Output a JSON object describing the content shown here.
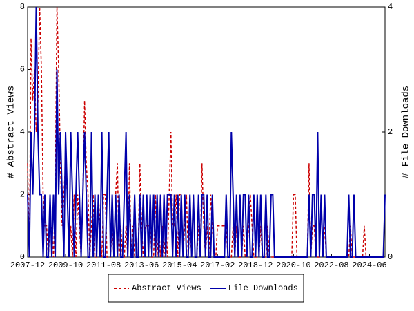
{
  "chart_data": {
    "type": "line",
    "x": [
      "2007-12",
      "2008-01",
      "2008-02",
      "2008-03",
      "2008-04",
      "2008-05",
      "2008-06",
      "2008-07",
      "2008-08",
      "2008-09",
      "2008-10",
      "2008-11",
      "2008-12",
      "2009-01",
      "2009-02",
      "2009-03",
      "2009-04",
      "2009-05",
      "2009-06",
      "2009-07",
      "2009-08",
      "2009-09",
      "2009-10",
      "2009-11",
      "2009-12",
      "2010-01",
      "2010-02",
      "2010-03",
      "2010-04",
      "2010-05",
      "2010-06",
      "2010-07",
      "2010-08",
      "2010-09",
      "2010-10",
      "2010-11",
      "2010-12",
      "2011-01",
      "2011-02",
      "2011-03",
      "2011-04",
      "2011-05",
      "2011-06",
      "2011-07",
      "2011-08",
      "2011-09",
      "2011-10",
      "2011-11",
      "2011-12",
      "2012-01",
      "2012-02",
      "2012-03",
      "2012-04",
      "2012-05",
      "2012-06",
      "2012-07",
      "2012-08",
      "2012-09",
      "2012-10",
      "2012-11",
      "2012-12",
      "2013-01",
      "2013-02",
      "2013-03",
      "2013-04",
      "2013-05",
      "2013-06",
      "2013-07",
      "2013-08",
      "2013-09",
      "2013-10",
      "2013-11",
      "2013-12",
      "2014-01",
      "2014-02",
      "2014-03",
      "2014-04",
      "2014-05",
      "2014-06",
      "2014-07",
      "2014-08",
      "2014-09",
      "2014-10",
      "2014-11",
      "2014-12",
      "2015-01",
      "2015-02",
      "2015-03",
      "2015-04",
      "2015-05",
      "2015-06",
      "2015-07",
      "2015-08",
      "2015-09",
      "2015-10",
      "2015-11",
      "2015-12",
      "2016-01",
      "2016-02",
      "2016-03",
      "2016-04",
      "2016-05",
      "2016-06",
      "2016-07",
      "2016-08",
      "2016-09",
      "2016-10",
      "2016-11",
      "2016-12",
      "2017-01",
      "2017-02",
      "2017-03",
      "2017-04",
      "2017-05",
      "2017-06",
      "2017-07",
      "2017-08",
      "2017-09",
      "2017-10",
      "2017-11",
      "2017-12",
      "2018-01",
      "2018-02",
      "2018-03",
      "2018-04",
      "2018-05",
      "2018-06",
      "2018-07",
      "2018-08",
      "2018-09",
      "2018-10",
      "2018-11",
      "2018-12",
      "2019-01",
      "2019-02",
      "2019-03",
      "2019-04",
      "2019-05",
      "2019-06",
      "2019-07",
      "2019-08",
      "2019-09",
      "2019-10",
      "2019-11",
      "2019-12",
      "2020-01",
      "2020-02",
      "2020-03",
      "2020-04",
      "2020-05",
      "2020-06",
      "2020-07",
      "2020-08",
      "2020-09",
      "2020-10",
      "2020-11",
      "2020-12",
      "2021-01",
      "2021-02",
      "2021-03",
      "2021-04",
      "2021-05",
      "2021-06",
      "2021-07",
      "2021-08",
      "2021-09",
      "2021-10",
      "2021-11",
      "2021-12",
      "2022-01",
      "2022-02",
      "2022-03",
      "2022-04",
      "2022-05",
      "2022-06",
      "2022-07",
      "2022-08",
      "2022-09",
      "2022-10",
      "2022-11",
      "2022-12",
      "2023-01",
      "2023-02",
      "2023-03",
      "2023-04",
      "2023-05",
      "2023-06",
      "2023-07",
      "2023-08",
      "2023-09",
      "2023-10",
      "2023-11",
      "2023-12",
      "2024-01",
      "2024-02",
      "2024-03",
      "2024-04",
      "2024-05",
      "2024-06",
      "2024-07",
      "2024-08",
      "2024-09",
      "2024-10",
      "2024-11",
      "2024-12",
      "2025-01",
      "2025-02",
      "2025-03"
    ],
    "xticks": [
      "2007-12",
      "2009-10",
      "2011-08",
      "2013-06",
      "2015-04",
      "2017-02",
      "2018-12",
      "2020-10",
      "2022-08",
      "2024-06"
    ],
    "ylabel": "# Abstract Views",
    "y2label": "# File Downloads",
    "ylim": [
      0,
      8
    ],
    "yticks": [
      0,
      2,
      4,
      6,
      8
    ],
    "y2lim": [
      0,
      4
    ],
    "y2ticks": [
      0,
      2,
      4
    ],
    "series": [
      {
        "name": "Abstract Views",
        "color": "#cc0000",
        "dashed": true,
        "values": [
          3,
          0,
          7,
          5,
          6,
          4,
          5,
          8,
          6,
          2,
          1,
          1,
          0,
          1,
          1,
          0,
          2,
          8,
          6,
          3,
          1,
          2,
          3,
          2,
          0,
          1,
          0,
          2,
          0,
          2,
          1,
          0,
          2,
          5,
          3,
          2,
          0,
          1,
          2,
          0,
          0,
          2,
          1,
          0,
          2,
          2,
          0,
          0,
          0,
          1,
          0,
          2,
          3,
          0,
          1,
          0,
          0,
          1,
          0,
          3,
          0,
          1,
          0,
          0,
          0,
          3,
          1,
          0,
          1,
          1,
          1,
          1,
          0,
          0,
          2,
          0,
          1,
          0,
          1,
          0,
          1,
          0,
          2,
          4,
          1,
          1,
          2,
          0,
          2,
          2,
          0,
          1,
          2,
          0,
          1,
          0,
          2,
          0,
          0,
          1,
          0,
          3,
          1,
          0,
          1,
          0,
          2,
          1,
          0,
          0,
          1,
          1,
          1,
          1,
          1,
          1,
          0,
          0,
          0,
          1,
          0,
          1,
          0,
          0,
          0,
          1,
          0,
          0,
          1,
          2,
          1,
          0,
          0,
          0,
          0,
          1,
          0,
          0,
          0,
          1,
          0,
          0,
          0,
          0,
          0,
          0,
          0,
          0,
          0,
          0,
          0,
          0,
          0,
          0,
          2,
          2,
          0,
          0,
          0,
          0,
          0,
          0,
          0,
          3,
          0,
          1,
          1,
          0,
          0,
          0,
          2,
          0,
          1,
          0,
          0,
          0,
          0,
          0,
          0,
          0,
          0,
          0,
          0,
          0,
          0,
          0,
          0,
          1,
          0,
          0,
          0,
          0,
          0,
          0,
          0,
          1,
          0,
          0,
          0,
          0,
          0,
          0,
          0,
          0,
          0,
          0,
          0,
          0
        ]
      },
      {
        "name": "File Downloads",
        "color": "#0000aa",
        "dashed": false,
        "axis": "y2",
        "values": [
          1,
          0,
          2,
          1,
          2,
          4,
          2,
          1,
          1,
          0,
          1,
          0,
          0,
          1,
          0,
          1,
          0,
          3,
          1,
          2,
          1,
          0,
          2,
          1,
          0,
          2,
          1,
          0,
          1,
          2,
          1,
          0,
          1,
          2,
          1,
          0,
          0,
          2,
          0,
          1,
          0,
          1,
          0,
          2,
          0,
          0,
          1,
          2,
          0,
          1,
          0,
          1,
          0,
          1,
          0,
          0,
          1,
          2,
          0,
          1,
          0,
          0,
          1,
          0,
          0,
          1,
          0,
          1,
          0,
          1,
          0,
          1,
          0,
          1,
          0,
          1,
          0,
          1,
          0,
          1,
          0,
          1,
          1,
          1,
          0,
          1,
          0,
          1,
          0,
          1,
          0,
          1,
          0,
          0,
          1,
          0,
          1,
          0,
          0,
          1,
          0,
          1,
          1,
          0,
          1,
          0,
          0,
          1,
          0,
          0,
          0,
          0,
          0,
          0,
          0,
          1,
          0,
          0,
          2,
          1,
          0,
          1,
          0,
          1,
          0,
          1,
          1,
          0,
          1,
          0,
          0,
          1,
          0,
          1,
          0,
          1,
          0,
          0,
          1,
          0,
          0,
          1,
          1,
          0,
          0,
          0,
          0,
          0,
          0,
          0,
          0,
          0,
          0,
          0,
          0,
          0,
          0,
          0,
          0,
          0,
          0,
          0,
          0,
          1,
          0,
          1,
          1,
          0,
          2,
          0,
          1,
          0,
          1,
          0,
          0,
          0,
          0,
          0,
          0,
          0,
          0,
          0,
          0,
          0,
          0,
          0,
          1,
          0,
          0,
          1,
          0,
          0,
          0,
          0,
          0,
          0,
          0,
          0,
          0,
          0,
          0,
          0,
          0,
          0,
          0,
          0,
          0,
          1
        ]
      }
    ]
  }
}
